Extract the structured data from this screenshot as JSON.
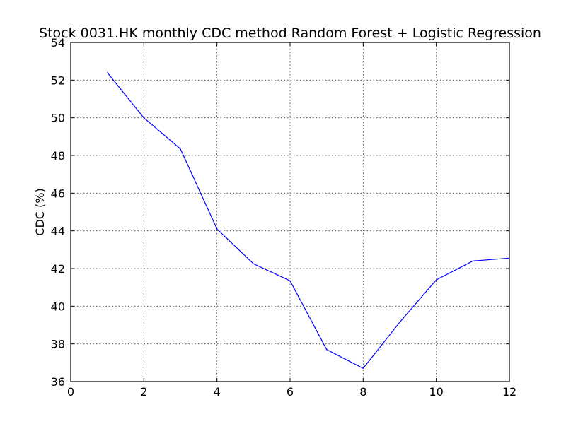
{
  "chart_data": {
    "type": "line",
    "title": "Stock 0031.HK monthly CDC method Random Forest + Logistic Regression",
    "xlabel": "",
    "ylabel": "CDC (%)",
    "xlim": [
      0,
      12
    ],
    "ylim": [
      36,
      54
    ],
    "xticks": [
      "0",
      "2",
      "4",
      "6",
      "8",
      "10",
      "12"
    ],
    "yticks": [
      "36",
      "38",
      "40",
      "42",
      "44",
      "46",
      "48",
      "50",
      "52",
      "54"
    ],
    "grid": true,
    "series": [
      {
        "color": "#0000ff",
        "x": [
          1,
          2,
          3,
          4,
          5,
          6,
          7,
          8,
          9,
          10,
          11,
          12
        ],
        "y": [
          52.4,
          50.0,
          48.35,
          44.1,
          42.25,
          41.35,
          37.7,
          36.7,
          39.15,
          41.4,
          42.4,
          42.55
        ]
      }
    ]
  }
}
